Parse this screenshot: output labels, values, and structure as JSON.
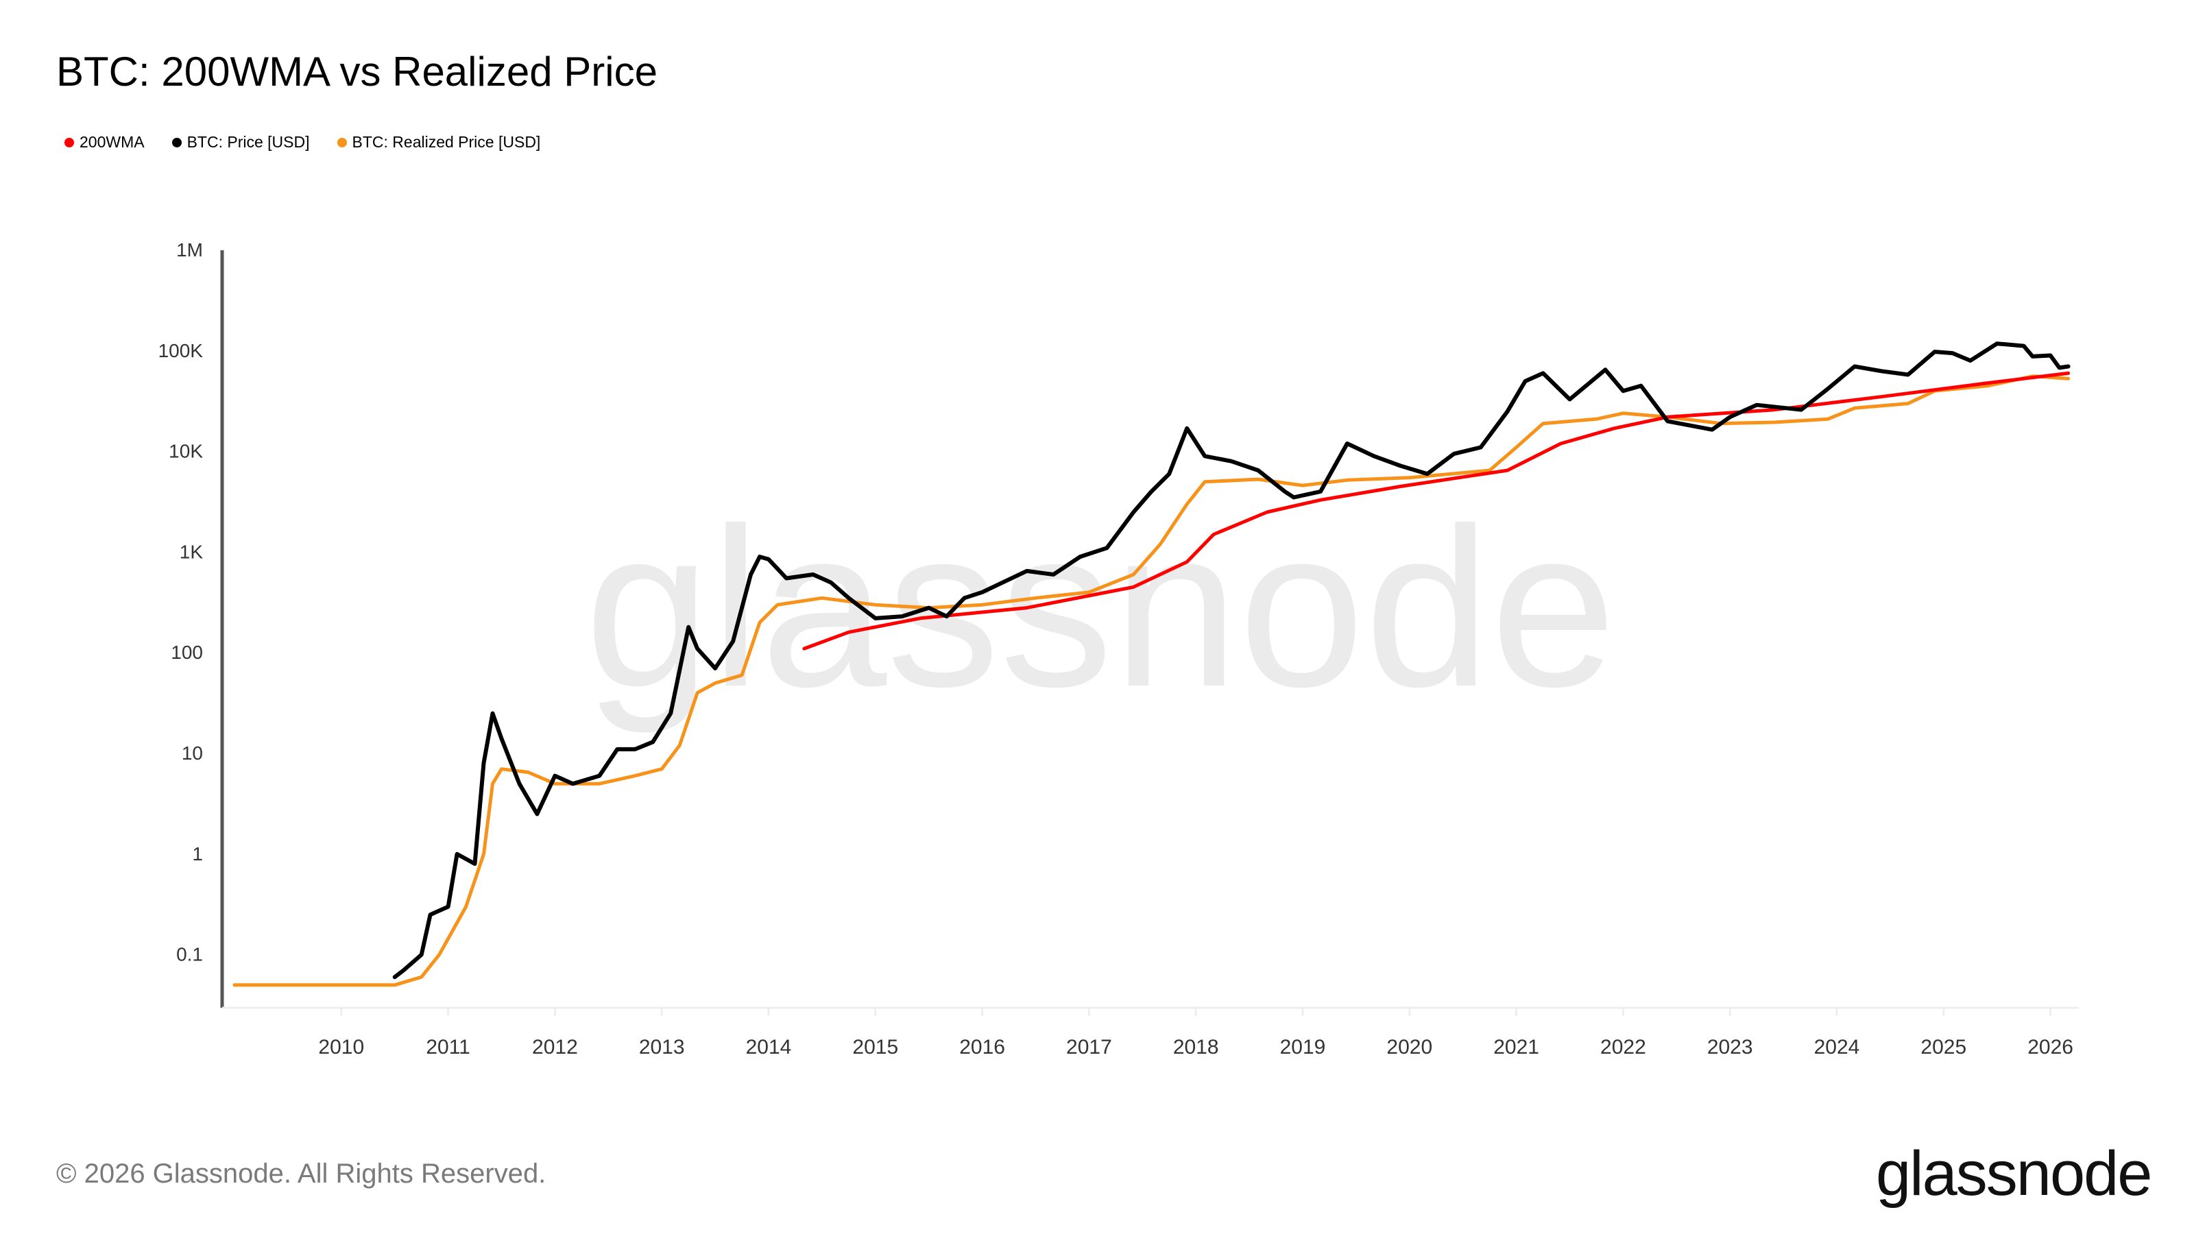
{
  "title": "BTC: 200WMA vs Realized Price",
  "footer": "© 2026 Glassnode. All Rights Reserved.",
  "logo": "glassnode",
  "watermark": "glassnode",
  "chart_data": {
    "type": "line",
    "title": "BTC: 200WMA vs Realized Price",
    "y_scale": "log",
    "ylim": [
      0.03,
      1000000
    ],
    "xlim": [
      "2009-01",
      "2026-04"
    ],
    "y_ticks": [
      {
        "value": 0.1,
        "label": "0.1"
      },
      {
        "value": 1,
        "label": "1"
      },
      {
        "value": 10,
        "label": "10"
      },
      {
        "value": 100,
        "label": "100"
      },
      {
        "value": 1000,
        "label": "1K"
      },
      {
        "value": 10000,
        "label": "10K"
      },
      {
        "value": 100000,
        "label": "100K"
      },
      {
        "value": 1000000,
        "label": "1M"
      }
    ],
    "x_ticks": [
      "2010",
      "2011",
      "2012",
      "2013",
      "2014",
      "2015",
      "2016",
      "2017",
      "2018",
      "2019",
      "2020",
      "2021",
      "2022",
      "2023",
      "2024",
      "2025",
      "2026"
    ],
    "grid": false,
    "legend_position": "top-left",
    "series": [
      {
        "name": "200WMA",
        "color": "#ff0000",
        "points": [
          [
            "2014-05",
            110
          ],
          [
            "2014-10",
            160
          ],
          [
            "2015-06",
            220
          ],
          [
            "2016-06",
            280
          ],
          [
            "2017-06",
            450
          ],
          [
            "2017-12",
            800
          ],
          [
            "2018-03",
            1500
          ],
          [
            "2018-09",
            2500
          ],
          [
            "2019-03",
            3300
          ],
          [
            "2019-12",
            4500
          ],
          [
            "2020-12",
            6500
          ],
          [
            "2021-06",
            12000
          ],
          [
            "2021-12",
            17000
          ],
          [
            "2022-06",
            22000
          ],
          [
            "2023-06",
            26000
          ],
          [
            "2024-06",
            35000
          ],
          [
            "2025-06",
            48000
          ],
          [
            "2026-03",
            60000
          ]
        ]
      },
      {
        "name": "BTC: Price [USD]",
        "color": "#000000",
        "points": [
          [
            "2010-07",
            0.06
          ],
          [
            "2010-08",
            0.07
          ],
          [
            "2010-10",
            0.1
          ],
          [
            "2010-11",
            0.25
          ],
          [
            "2011-01",
            0.3
          ],
          [
            "2011-02",
            1
          ],
          [
            "2011-04",
            0.8
          ],
          [
            "2011-05",
            8
          ],
          [
            "2011-06",
            25
          ],
          [
            "2011-07",
            14
          ],
          [
            "2011-09",
            5
          ],
          [
            "2011-11",
            2.5
          ],
          [
            "2012-01",
            6
          ],
          [
            "2012-03",
            5
          ],
          [
            "2012-06",
            6
          ],
          [
            "2012-08",
            11
          ],
          [
            "2012-10",
            11
          ],
          [
            "2012-12",
            13
          ],
          [
            "2013-02",
            25
          ],
          [
            "2013-04",
            180
          ],
          [
            "2013-05",
            110
          ],
          [
            "2013-07",
            70
          ],
          [
            "2013-09",
            130
          ],
          [
            "2013-11",
            600
          ],
          [
            "2013-12",
            900
          ],
          [
            "2014-01",
            850
          ],
          [
            "2014-03",
            550
          ],
          [
            "2014-06",
            600
          ],
          [
            "2014-08",
            500
          ],
          [
            "2014-10",
            350
          ],
          [
            "2015-01",
            220
          ],
          [
            "2015-04",
            230
          ],
          [
            "2015-07",
            280
          ],
          [
            "2015-09",
            230
          ],
          [
            "2015-11",
            350
          ],
          [
            "2016-01",
            400
          ],
          [
            "2016-06",
            650
          ],
          [
            "2016-09",
            600
          ],
          [
            "2016-12",
            900
          ],
          [
            "2017-03",
            1100
          ],
          [
            "2017-06",
            2500
          ],
          [
            "2017-08",
            4000
          ],
          [
            "2017-10",
            6000
          ],
          [
            "2017-12",
            17000
          ],
          [
            "2018-02",
            9000
          ],
          [
            "2018-05",
            8000
          ],
          [
            "2018-08",
            6500
          ],
          [
            "2018-11",
            4000
          ],
          [
            "2018-12",
            3500
          ],
          [
            "2019-03",
            4000
          ],
          [
            "2019-06",
            12000
          ],
          [
            "2019-09",
            9000
          ],
          [
            "2019-12",
            7200
          ],
          [
            "2020-03",
            6000
          ],
          [
            "2020-06",
            9500
          ],
          [
            "2020-09",
            11000
          ],
          [
            "2020-12",
            25000
          ],
          [
            "2021-02",
            50000
          ],
          [
            "2021-04",
            60000
          ],
          [
            "2021-07",
            33000
          ],
          [
            "2021-11",
            65000
          ],
          [
            "2022-01",
            40000
          ],
          [
            "2022-03",
            45000
          ],
          [
            "2022-06",
            20000
          ],
          [
            "2022-11",
            16500
          ],
          [
            "2023-01",
            22000
          ],
          [
            "2023-04",
            29000
          ],
          [
            "2023-09",
            26000
          ],
          [
            "2023-12",
            42000
          ],
          [
            "2024-03",
            70000
          ],
          [
            "2024-06",
            63000
          ],
          [
            "2024-09",
            58000
          ],
          [
            "2024-12",
            98000
          ],
          [
            "2025-02",
            95000
          ],
          [
            "2025-04",
            80000
          ],
          [
            "2025-07",
            118000
          ],
          [
            "2025-10",
            112000
          ],
          [
            "2025-11",
            88000
          ],
          [
            "2026-01",
            90000
          ],
          [
            "2026-02",
            68000
          ],
          [
            "2026-03",
            70000
          ]
        ]
      },
      {
        "name": "BTC: Realized Price [USD]",
        "color": "#f7931a",
        "points": [
          [
            "2009-01",
            0.05
          ],
          [
            "2010-07",
            0.05
          ],
          [
            "2010-10",
            0.06
          ],
          [
            "2010-12",
            0.1
          ],
          [
            "2011-03",
            0.3
          ],
          [
            "2011-05",
            1
          ],
          [
            "2011-06",
            5
          ],
          [
            "2011-07",
            7
          ],
          [
            "2011-10",
            6.5
          ],
          [
            "2012-01",
            5
          ],
          [
            "2012-06",
            5
          ],
          [
            "2012-10",
            6
          ],
          [
            "2013-01",
            7
          ],
          [
            "2013-03",
            12
          ],
          [
            "2013-05",
            40
          ],
          [
            "2013-07",
            50
          ],
          [
            "2013-10",
            60
          ],
          [
            "2013-12",
            200
          ],
          [
            "2014-02",
            300
          ],
          [
            "2014-07",
            350
          ],
          [
            "2015-01",
            300
          ],
          [
            "2015-07",
            280
          ],
          [
            "2016-01",
            300
          ],
          [
            "2016-07",
            350
          ],
          [
            "2017-01",
            400
          ],
          [
            "2017-06",
            600
          ],
          [
            "2017-09",
            1200
          ],
          [
            "2017-12",
            3000
          ],
          [
            "2018-02",
            5000
          ],
          [
            "2018-08",
            5300
          ],
          [
            "2019-01",
            4600
          ],
          [
            "2019-06",
            5200
          ],
          [
            "2020-01",
            5500
          ],
          [
            "2020-10",
            6500
          ],
          [
            "2021-01",
            11000
          ],
          [
            "2021-04",
            19000
          ],
          [
            "2021-10",
            21000
          ],
          [
            "2022-01",
            24000
          ],
          [
            "2022-06",
            22000
          ],
          [
            "2022-12",
            19000
          ],
          [
            "2023-06",
            19500
          ],
          [
            "2023-12",
            21000
          ],
          [
            "2024-03",
            27000
          ],
          [
            "2024-09",
            30000
          ],
          [
            "2024-12",
            40000
          ],
          [
            "2025-06",
            45000
          ],
          [
            "2025-11",
            56000
          ],
          [
            "2026-03",
            53000
          ]
        ]
      }
    ]
  }
}
